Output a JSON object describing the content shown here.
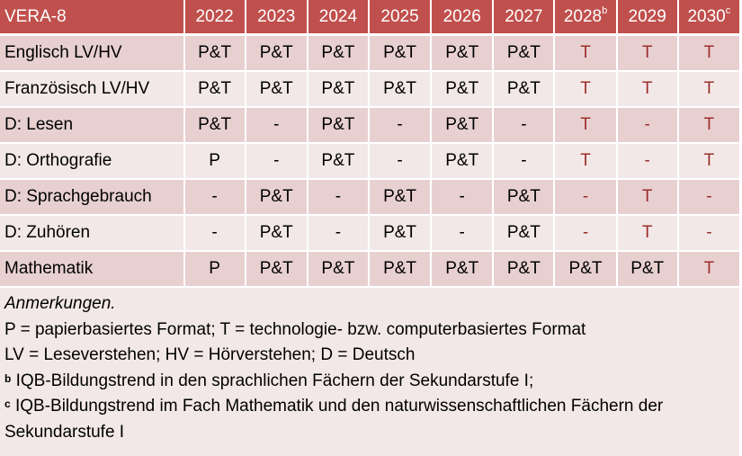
{
  "table": {
    "title": "VERA-8",
    "years": [
      {
        "label": "2022",
        "note": ""
      },
      {
        "label": "2023",
        "note": ""
      },
      {
        "label": "2024",
        "note": ""
      },
      {
        "label": "2025",
        "note": ""
      },
      {
        "label": "2026",
        "note": ""
      },
      {
        "label": "2027",
        "note": ""
      },
      {
        "label": "2028",
        "note": "b"
      },
      {
        "label": "2029",
        "note": ""
      },
      {
        "label": "2030",
        "note": "c"
      }
    ],
    "rows": [
      {
        "subject": "Englisch LV/HV",
        "values": [
          "P&T",
          "P&T",
          "P&T",
          "P&T",
          "P&T",
          "P&T",
          "T",
          "T",
          "T"
        ]
      },
      {
        "subject": "Französisch LV/HV",
        "values": [
          "P&T",
          "P&T",
          "P&T",
          "P&T",
          "P&T",
          "P&T",
          "T",
          "T",
          "T"
        ]
      },
      {
        "subject": "D: Lesen",
        "values": [
          "P&T",
          "-",
          "P&T",
          "-",
          "P&T",
          "-",
          "T",
          "-",
          "T"
        ]
      },
      {
        "subject": "D: Orthografie",
        "values": [
          "P",
          "-",
          "P&T",
          "-",
          "P&T",
          "-",
          "T",
          "-",
          "T"
        ]
      },
      {
        "subject": "D: Sprachgebrauch",
        "values": [
          "-",
          "P&T",
          "-",
          "P&T",
          "-",
          "P&T",
          "-",
          "T",
          "-"
        ]
      },
      {
        "subject": "D: Zuhören",
        "values": [
          "-",
          "P&T",
          "-",
          "P&T",
          "-",
          "P&T",
          "-",
          "T",
          "-"
        ]
      },
      {
        "subject": "Mathematik",
        "values": [
          "P",
          "P&T",
          "P&T",
          "P&T",
          "P&T",
          "P&T",
          "P&T",
          "P&T",
          "T"
        ]
      }
    ]
  },
  "notes": {
    "heading": "Anmerkungen.",
    "line1": "P = papierbasiertes Format; T = technologie- bzw. computerbasiertes Format",
    "line2": "LV = Leseverstehen; HV = Hörverstehen; D = Deutsch",
    "b_mark": "b",
    "b_text": " IQB-Bildungstrend in den sprachlichen Fächern der Sekundarstufe I;",
    "c_mark": "c",
    "c_text": " IQB-Bildungstrend im Fach Mathematik und den naturwissenschaftlichen Fächern der Sekundarstufe I"
  },
  "colors": {
    "header_bg": "#c0504d",
    "row_dark": "#e8d0d1",
    "row_light": "#f3e8e8",
    "highlight_text": "#9b2f2c"
  }
}
